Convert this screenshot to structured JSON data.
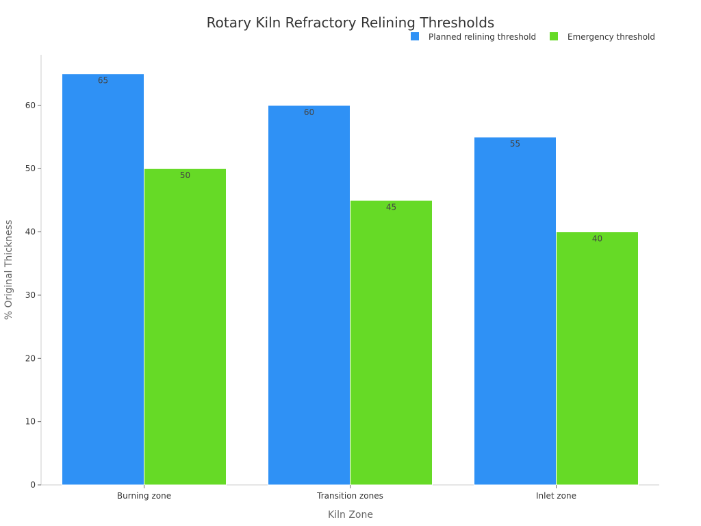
{
  "chart_data": {
    "type": "bar",
    "title": "Rotary Kiln Refractory Relining Thresholds",
    "xlabel": "Kiln Zone",
    "ylabel": "% Original Thickness",
    "categories": [
      "Burning zone",
      "Transition zones",
      "Inlet zone"
    ],
    "series": [
      {
        "name": "Planned relining threshold",
        "values": [
          65,
          60,
          55
        ],
        "color": "#2f91f5"
      },
      {
        "name": "Emergency threshold",
        "values": [
          50,
          45,
          40
        ],
        "color": "#66da26"
      }
    ],
    "ylim": [
      0,
      68
    ],
    "yticks": [
      0,
      10,
      20,
      30,
      40,
      50,
      60
    ],
    "grid": false,
    "legend_position": "top-right"
  }
}
